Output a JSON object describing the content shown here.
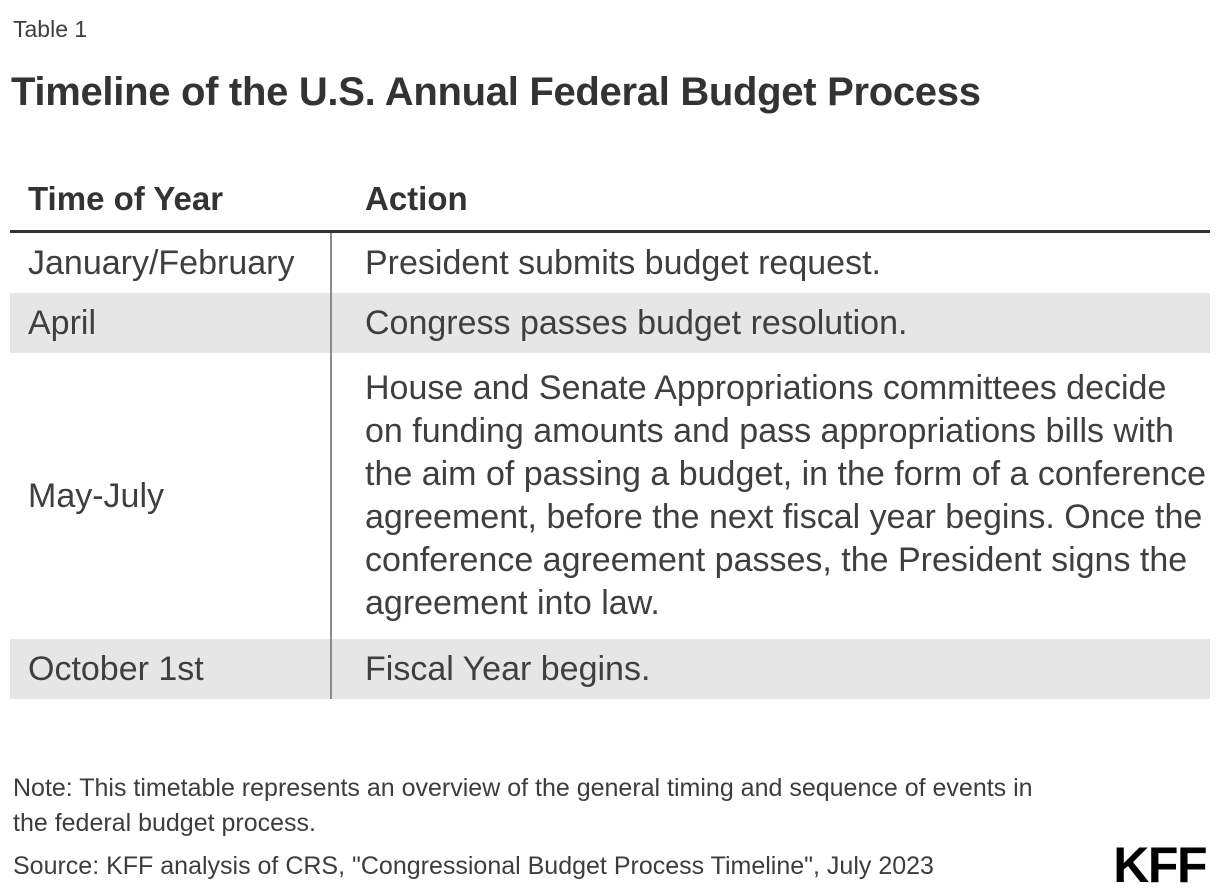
{
  "colors": {
    "background": "#ffffff",
    "heading_text": "#333333",
    "body_text": "#3f3f3f",
    "shaded_row_bg": "#e6e6e6",
    "column_divider": "#8c8c8c",
    "header_rule": "#333333",
    "logo": "#000000"
  },
  "chart_data": {
    "type": "table",
    "label": "Table 1",
    "title": "Timeline of the U.S. Annual Federal Budget Process",
    "columns": [
      "Time of Year",
      "Action"
    ],
    "rows": [
      [
        "January/February",
        "President submits budget request."
      ],
      [
        "April",
        "Congress passes budget resolution."
      ],
      [
        "May-July",
        "House and Senate Appropriations committees decide on funding amounts and pass appropriations bills with the aim of passing a budget, in the form of a conference agreement, before the next fiscal year begins. Once the conference agreement passes, the President signs the agreement into law."
      ],
      [
        "October 1st",
        "Fiscal Year begins."
      ]
    ],
    "shaded_rows": [
      1,
      3
    ],
    "note_lines": [
      "Note: This timetable represents an overview of the general timing and sequence of events in",
      "the federal budget process."
    ],
    "source": "Source: KFF analysis of CRS, \"Congressional Budget Process Timeline\", July 2023",
    "brand": "KFF"
  }
}
